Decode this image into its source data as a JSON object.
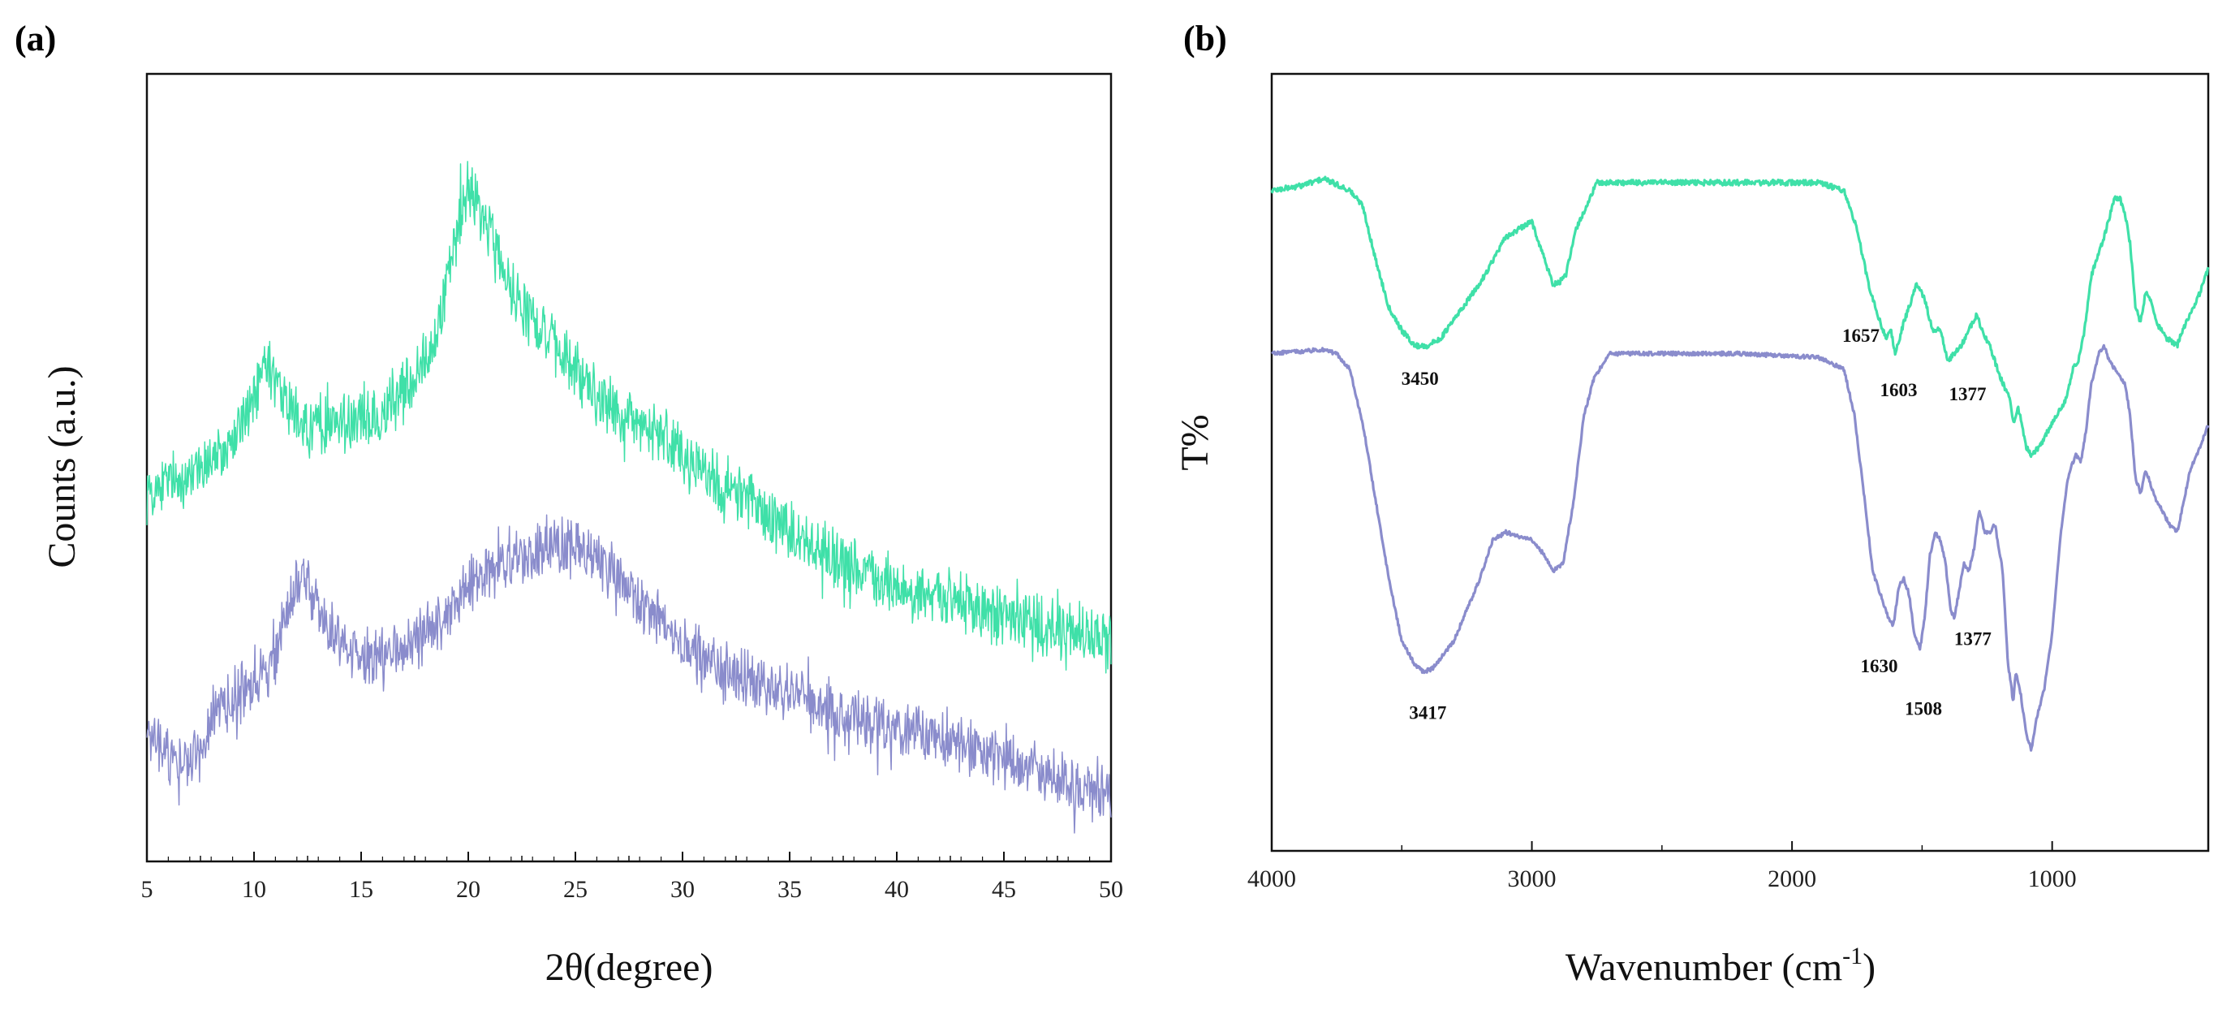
{
  "chart_data": [
    {
      "panel": "(a)",
      "type": "line",
      "xlabel": "2θ(degree)",
      "ylabel": "Counts (a.u.)",
      "xlim": [
        5,
        50
      ],
      "ylim": [
        0,
        100
      ],
      "xticks": [
        5,
        10,
        15,
        20,
        25,
        30,
        35,
        40,
        45,
        50
      ],
      "grid": false,
      "colors": [
        "#3fe0a8",
        "#8a8ccc"
      ],
      "series": [
        {
          "name": "green trace",
          "color": "#3fe0a8",
          "noise": 3.2,
          "anchors": [
            [
              5,
              47
            ],
            [
              7,
              49
            ],
            [
              9,
              53
            ],
            [
              10,
              59
            ],
            [
              10.7,
              62
            ],
            [
              11.5,
              58
            ],
            [
              12.5,
              55
            ],
            [
              14,
              56
            ],
            [
              16,
              57
            ],
            [
              17.5,
              61
            ],
            [
              18.5,
              67
            ],
            [
              19.5,
              80
            ],
            [
              20,
              86
            ],
            [
              20.8,
              81
            ],
            [
              22,
              73
            ],
            [
              23,
              69
            ],
            [
              25,
              62
            ],
            [
              27,
              57
            ],
            [
              30,
              52
            ],
            [
              33,
              46
            ],
            [
              35,
              42
            ],
            [
              38,
              37
            ],
            [
              40,
              35
            ],
            [
              45,
              31
            ],
            [
              50,
              28
            ]
          ]
        },
        {
          "name": "purple trace",
          "color": "#8a8ccc",
          "noise": 3.0,
          "anchors": [
            [
              5,
              16
            ],
            [
              6,
              13
            ],
            [
              7,
              13
            ],
            [
              8,
              17
            ],
            [
              9,
              21
            ],
            [
              10,
              22
            ],
            [
              11,
              26
            ],
            [
              11.8,
              34
            ],
            [
              12.3,
              37
            ],
            [
              13,
              32
            ],
            [
              14,
              28
            ],
            [
              15,
              25
            ],
            [
              17,
              27
            ],
            [
              19,
              31
            ],
            [
              20,
              35
            ],
            [
              22,
              38
            ],
            [
              24,
              40
            ],
            [
              25,
              40
            ],
            [
              27,
              36
            ],
            [
              29,
              30
            ],
            [
              30,
              27
            ],
            [
              33,
              23
            ],
            [
              35,
              21
            ],
            [
              38,
              18
            ],
            [
              40,
              17
            ],
            [
              45,
              13
            ],
            [
              48,
              10
            ],
            [
              50,
              8
            ]
          ]
        }
      ]
    },
    {
      "panel": "(b)",
      "type": "line",
      "xlabel": "Wavenumber (cm",
      "xlabel_sup": "-1",
      "xlabel_end": ")",
      "ylabel": "T%",
      "xlim": [
        4000,
        400
      ],
      "ylim": [
        0,
        100
      ],
      "xticks": [
        4000,
        3000,
        2000,
        1000
      ],
      "grid": false,
      "colors": [
        "#3fe0a8",
        "#8a8ccc"
      ],
      "series": [
        {
          "name": "green trace",
          "color": "#3fe0a8",
          "noise": 0.35,
          "anchors": [
            [
              4000,
              85
            ],
            [
              3900,
              85.5
            ],
            [
              3800,
              86.5
            ],
            [
              3700,
              85
            ],
            [
              3650,
              83
            ],
            [
              3600,
              76
            ],
            [
              3550,
              70
            ],
            [
              3500,
              67
            ],
            [
              3450,
              65
            ],
            [
              3400,
              65
            ],
            [
              3350,
              66
            ],
            [
              3200,
              73
            ],
            [
              3100,
              79
            ],
            [
              3000,
              81
            ],
            [
              2960,
              77
            ],
            [
              2920,
              73
            ],
            [
              2900,
              73
            ],
            [
              2870,
              74
            ],
            [
              2830,
              80
            ],
            [
              2750,
              86
            ],
            [
              2500,
              86
            ],
            [
              2200,
              86
            ],
            [
              1900,
              86
            ],
            [
              1800,
              85
            ],
            [
              1750,
              80
            ],
            [
              1700,
              72
            ],
            [
              1660,
              68
            ],
            [
              1640,
              66
            ],
            [
              1620,
              67
            ],
            [
              1603,
              64
            ],
            [
              1570,
              68
            ],
            [
              1550,
              70
            ],
            [
              1520,
              73
            ],
            [
              1490,
              71
            ],
            [
              1460,
              67
            ],
            [
              1430,
              67
            ],
            [
              1400,
              63
            ],
            [
              1377,
              64
            ],
            [
              1350,
              65
            ],
            [
              1320,
              67
            ],
            [
              1290,
              69
            ],
            [
              1270,
              67
            ],
            [
              1240,
              65
            ],
            [
              1200,
              61
            ],
            [
              1160,
              58
            ],
            [
              1150,
              55
            ],
            [
              1130,
              57
            ],
            [
              1100,
              52
            ],
            [
              1080,
              51
            ],
            [
              1050,
              52
            ],
            [
              1000,
              55
            ],
            [
              950,
              58
            ],
            [
              920,
              62
            ],
            [
              900,
              63
            ],
            [
              880,
              66
            ],
            [
              850,
              74
            ],
            [
              800,
              79
            ],
            [
              760,
              84
            ],
            [
              740,
              84
            ],
            [
              720,
              82
            ],
            [
              700,
              78
            ],
            [
              680,
              70
            ],
            [
              660,
              68
            ],
            [
              640,
              72
            ],
            [
              620,
              71
            ],
            [
              600,
              68
            ],
            [
              560,
              66
            ],
            [
              520,
              65
            ],
            [
              500,
              67
            ],
            [
              470,
              69
            ],
            [
              430,
              72
            ],
            [
              400,
              75
            ]
          ]
        },
        {
          "name": "purple trace",
          "color": "#8a8ccc",
          "noise": 0.25,
          "anchors": [
            [
              4000,
              64
            ],
            [
              3800,
              64.5
            ],
            [
              3750,
              64
            ],
            [
              3700,
              62
            ],
            [
              3650,
              55
            ],
            [
              3600,
              45
            ],
            [
              3550,
              35
            ],
            [
              3500,
              27
            ],
            [
              3450,
              24
            ],
            [
              3417,
              23
            ],
            [
              3380,
              23.5
            ],
            [
              3300,
              27
            ],
            [
              3200,
              35
            ],
            [
              3150,
              40
            ],
            [
              3100,
              41
            ],
            [
              3000,
              40
            ],
            [
              2950,
              38
            ],
            [
              2920,
              36
            ],
            [
              2880,
              37
            ],
            [
              2840,
              45
            ],
            [
              2800,
              56
            ],
            [
              2760,
              61
            ],
            [
              2700,
              64
            ],
            [
              2400,
              64
            ],
            [
              2200,
              64
            ],
            [
              1900,
              63.5
            ],
            [
              1800,
              62
            ],
            [
              1760,
              56
            ],
            [
              1720,
              45
            ],
            [
              1690,
              36
            ],
            [
              1660,
              33
            ],
            [
              1630,
              30
            ],
            [
              1610,
              29
            ],
            [
              1590,
              34
            ],
            [
              1570,
              35
            ],
            [
              1550,
              33
            ],
            [
              1530,
              28
            ],
            [
              1508,
              26
            ],
            [
              1490,
              30
            ],
            [
              1470,
              38
            ],
            [
              1450,
              41
            ],
            [
              1430,
              40
            ],
            [
              1410,
              37
            ],
            [
              1390,
              31
            ],
            [
              1377,
              30
            ],
            [
              1360,
              33
            ],
            [
              1340,
              37
            ],
            [
              1320,
              36
            ],
            [
              1300,
              39
            ],
            [
              1280,
              44
            ],
            [
              1260,
              41
            ],
            [
              1240,
              41
            ],
            [
              1220,
              42
            ],
            [
              1190,
              36
            ],
            [
              1170,
              24
            ],
            [
              1160,
              22
            ],
            [
              1150,
              19
            ],
            [
              1140,
              23
            ],
            [
              1120,
              20
            ],
            [
              1100,
              15
            ],
            [
              1080,
              13
            ],
            [
              1060,
              17
            ],
            [
              1030,
              21
            ],
            [
              1000,
              28
            ],
            [
              970,
              40
            ],
            [
              940,
              48
            ],
            [
              910,
              51
            ],
            [
              890,
              50
            ],
            [
              870,
              54
            ],
            [
              850,
              60
            ],
            [
              820,
              64
            ],
            [
              800,
              65
            ],
            [
              780,
              63
            ],
            [
              760,
              62
            ],
            [
              720,
              60
            ],
            [
              700,
              56
            ],
            [
              680,
              48
            ],
            [
              660,
              46
            ],
            [
              640,
              49
            ],
            [
              620,
              47
            ],
            [
              600,
              45
            ],
            [
              580,
              44
            ],
            [
              550,
              42
            ],
            [
              520,
              41
            ],
            [
              500,
              44
            ],
            [
              470,
              49
            ],
            [
              430,
              52
            ],
            [
              400,
              55
            ]
          ]
        }
      ],
      "annotations": [
        {
          "text": "3450",
          "x": 3430,
          "y": 60
        },
        {
          "text": "1657",
          "x": 1735,
          "y": 65.5
        },
        {
          "text": "1603",
          "x": 1590,
          "y": 58.5
        },
        {
          "text": "1377",
          "x": 1325,
          "y": 58
        },
        {
          "text": "3417",
          "x": 3400,
          "y": 17
        },
        {
          "text": "1630",
          "x": 1665,
          "y": 23
        },
        {
          "text": "1508",
          "x": 1495,
          "y": 17.5
        },
        {
          "text": "1377",
          "x": 1305,
          "y": 26.5
        }
      ]
    }
  ]
}
